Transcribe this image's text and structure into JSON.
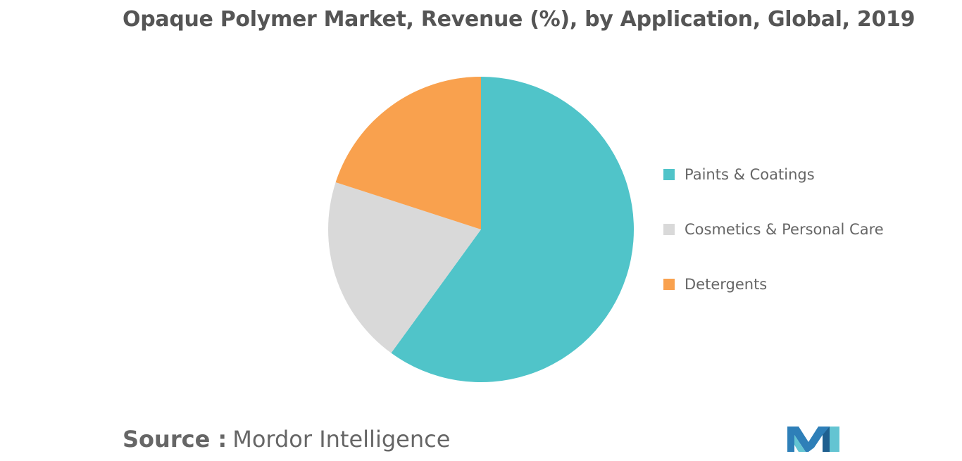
{
  "title": "Opaque Polymer Market, Revenue (%), by Application, Global, 2019",
  "source": {
    "prefix": "Source :",
    "name": "Mordor Intelligence"
  },
  "logo_icon": "mordor-intelligence-logo-icon",
  "chart_data": {
    "type": "pie",
    "title": "Opaque Polymer Market, Revenue (%), by Application, Global, 2019",
    "start_angle_deg": 0,
    "direction": "clockwise",
    "legend_position": "right",
    "slices": [
      {
        "label": "Paints & Coatings",
        "value": 60,
        "color": "#50C4C9"
      },
      {
        "label": "Cosmetics & Personal Care",
        "value": 20,
        "color": "#D9D9D9"
      },
      {
        "label": "Detergents",
        "value": 20,
        "color": "#F9A14E"
      }
    ]
  }
}
